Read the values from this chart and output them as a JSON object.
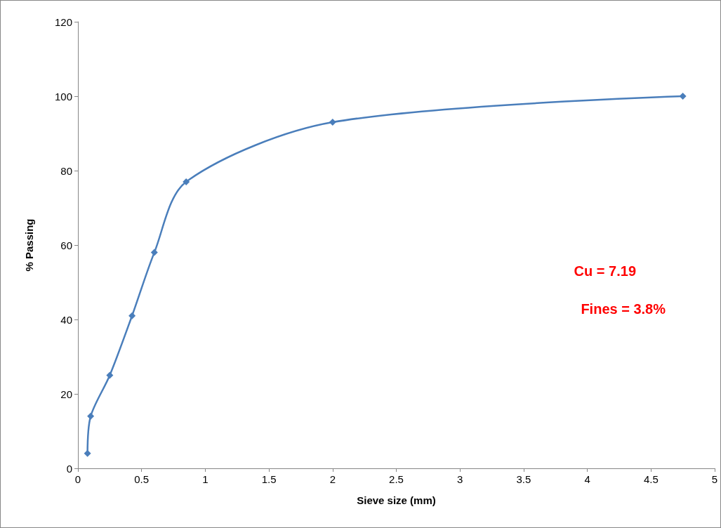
{
  "chart_data": {
    "type": "line",
    "xlabel": "Sieve size (mm)",
    "ylabel": "% Passing",
    "x": [
      0.075,
      0.1,
      0.25,
      0.425,
      0.6,
      0.85,
      2,
      4.75
    ],
    "series": [
      {
        "color": "#4a7ebb",
        "values": [
          4,
          14,
          25,
          41,
          58,
          77,
          93,
          100
        ]
      }
    ],
    "xlim": [
      0,
      5
    ],
    "xticks": [
      0,
      0.5,
      1,
      1.5,
      2,
      2.5,
      3,
      3.5,
      4,
      4.5,
      5
    ],
    "ylim": [
      0,
      120
    ],
    "yticks": [
      0,
      20,
      40,
      60,
      80,
      100,
      120
    ],
    "grid": false,
    "marker": "diamond",
    "line_style": "solid",
    "annotations": [
      "Cu = 7.19",
      "Fines = 3.8%"
    ]
  }
}
